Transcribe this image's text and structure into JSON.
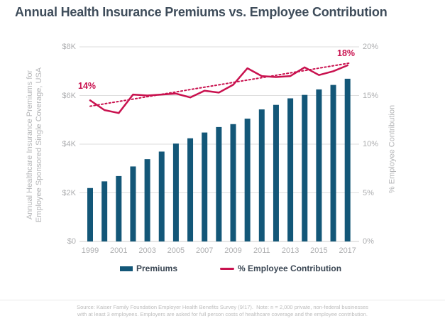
{
  "title": "Annual Health Insurance Premiums vs. Employee Contribution",
  "legend": {
    "premiums": "Premiums",
    "contribution": "% Employee Contribution"
  },
  "axes": {
    "left": {
      "label_lines": [
        "Annual Healthcare Insurance Premiums for",
        "Employee Sponsored Single Coverage, USA"
      ],
      "ticks": [
        "$8K",
        "$6K",
        "$4K",
        "$2K",
        "$0"
      ]
    },
    "right": {
      "label": "% Employee Contribution",
      "ticks": [
        "20%",
        "15%",
        "10%",
        "5%",
        "0%"
      ]
    },
    "x": {
      "tick_labels": [
        "1999",
        "2001",
        "2003",
        "2005",
        "2007",
        "2009",
        "2011",
        "2013",
        "2015",
        "2017"
      ]
    }
  },
  "colors": {
    "bar": "#135778",
    "line": "#c9124f",
    "grid": "#dedede",
    "baseline": "#cccccc",
    "axis_text": "#adaeb0",
    "title_text": "#3e4c5a"
  },
  "source": {
    "line1": "Source: Kaiser Family Foundation Employer Health Benefits Survey (9/17).  Note: n = 2,000 private, non-federal businesses",
    "line2": "with at least 3 employees. Employers are asked for full person costs of healthcare coverage and the employee contribution."
  },
  "chart_data": {
    "type": "bar",
    "title": "Annual Health Insurance Premiums vs. Employee Contribution",
    "categories": [
      1999,
      2000,
      2001,
      2002,
      2003,
      2004,
      2005,
      2006,
      2007,
      2008,
      2009,
      2010,
      2011,
      2012,
      2013,
      2014,
      2015,
      2016,
      2017
    ],
    "series": [
      {
        "name": "Premiums",
        "type": "bar",
        "axis": "left",
        "units": "USD per year",
        "values": [
          2196,
          2471,
          2689,
          3083,
          3383,
          3695,
          4024,
          4242,
          4479,
          4704,
          4824,
          5049,
          5429,
          5615,
          5884,
          6025,
          6251,
          6435,
          6690
        ]
      },
      {
        "name": "% Employee Contribution",
        "type": "line",
        "axis": "right",
        "units": "percent",
        "values": [
          14.5,
          13.5,
          13.2,
          15.1,
          15.0,
          15.1,
          15.2,
          14.8,
          15.5,
          15.3,
          16.1,
          17.8,
          17.0,
          16.9,
          17.0,
          17.9,
          17.1,
          17.5,
          18.1
        ]
      },
      {
        "name": "Trend of % Employee Contribution",
        "type": "trendline",
        "style": "dotted",
        "axis": "right",
        "start_value": 13.9,
        "end_value": 18.35
      }
    ],
    "left_axis": {
      "label": "Annual Healthcare Insurance Premiums for Employee Sponsored Single Coverage, USA",
      "ylim": [
        0,
        8000
      ],
      "tick_step": 2000
    },
    "right_axis": {
      "label": "% Employee Contribution",
      "ylim": [
        0,
        20
      ],
      "tick_step": 5
    },
    "grid": true,
    "legend_position": "bottom",
    "annotations": [
      {
        "text": "14%",
        "anchor_year": 1999
      },
      {
        "text": "18%",
        "anchor_year": 2017
      }
    ]
  }
}
